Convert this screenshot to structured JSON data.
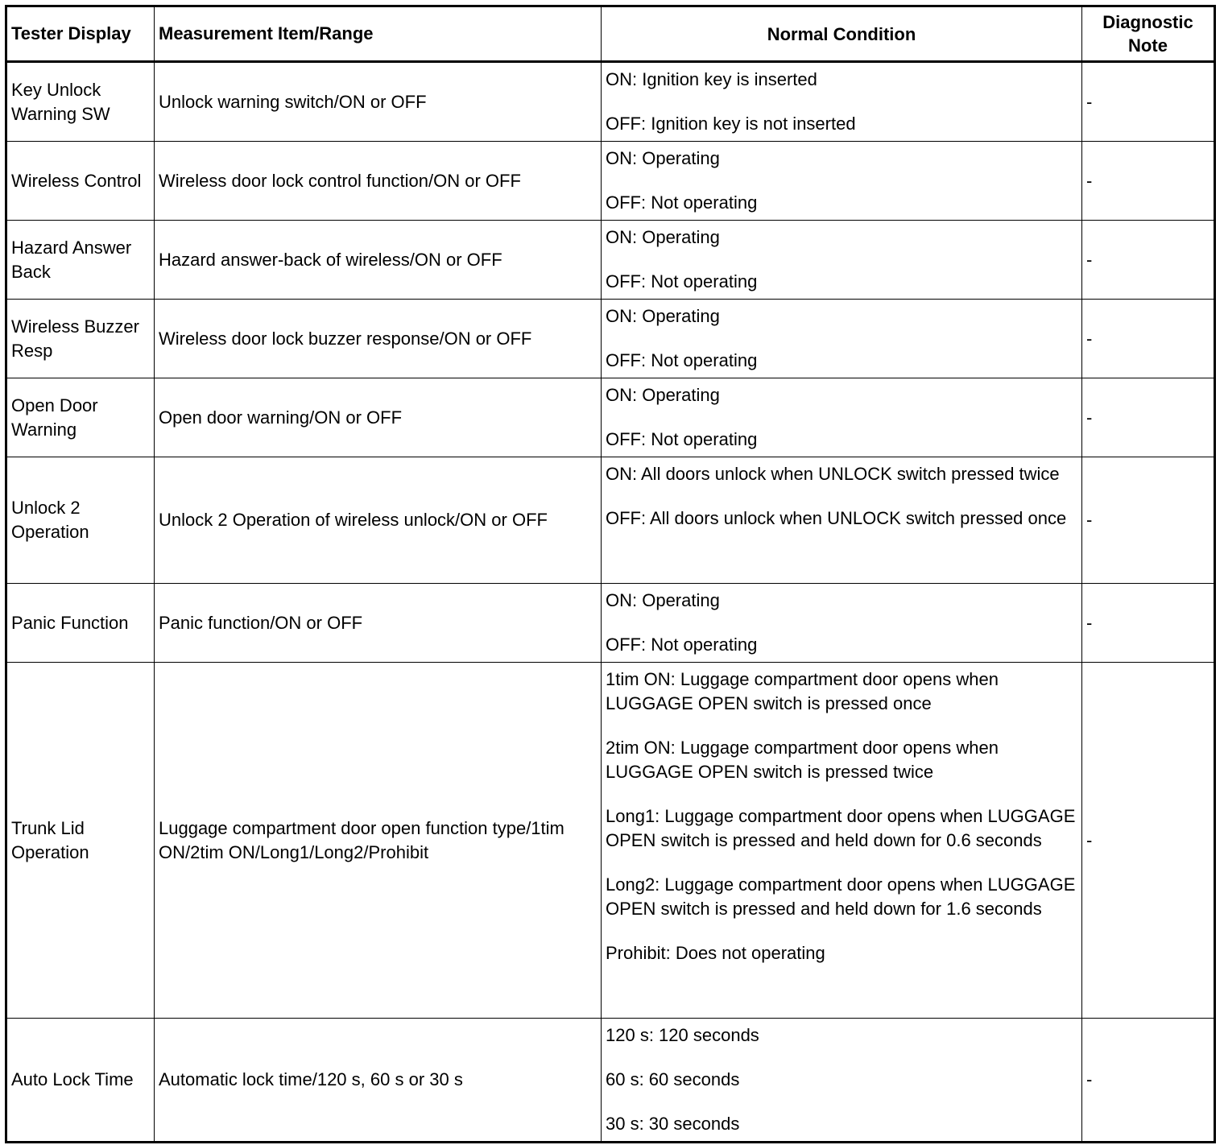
{
  "headers": [
    "Tester Display",
    "Measurement Item/Range",
    "Normal Condition",
    "Diagnostic Note"
  ],
  "rows": [
    {
      "display": "Key Unlock Warning SW",
      "item": "Unlock warning switch/ON or OFF",
      "conditions": [
        "ON: Ignition key is inserted",
        "OFF: Ignition key is not inserted"
      ],
      "note": "-"
    },
    {
      "display": "Wireless Control",
      "item": "Wireless door lock control function/ON or OFF",
      "conditions": [
        "ON: Operating",
        "OFF: Not operating"
      ],
      "note": "-"
    },
    {
      "display": "Hazard Answer Back",
      "item": "Hazard answer-back of wireless/ON or OFF",
      "conditions": [
        "ON: Operating",
        "OFF: Not operating"
      ],
      "note": "-"
    },
    {
      "display": "Wireless Buzzer Resp",
      "item": "Wireless door lock buzzer response/ON or OFF",
      "conditions": [
        "ON: Operating",
        "OFF: Not operating"
      ],
      "note": "-"
    },
    {
      "display": "Open Door Warning",
      "item": "Open door warning/ON or OFF",
      "conditions": [
        "ON: Operating",
        "OFF: Not operating"
      ],
      "note": "-"
    },
    {
      "display": "Unlock 2 Operation",
      "item": "Unlock 2 Operation of wireless unlock/ON or OFF",
      "conditions": [
        "ON: All doors unlock when UNLOCK switch pressed twice",
        "OFF: All doors unlock when UNLOCK switch pressed once"
      ],
      "note": "-"
    },
    {
      "display": "Panic Function",
      "item": "Panic function/ON or OFF",
      "conditions": [
        "ON: Operating",
        "OFF: Not operating"
      ],
      "note": "-"
    },
    {
      "display": "Trunk Lid Operation",
      "item": "Luggage compartment door open function type/1tim ON/2tim ON/Long1/Long2/Prohibit",
      "conditions": [
        "1tim ON: Luggage compartment door opens when LUGGAGE OPEN switch is pressed once",
        "2tim ON: Luggage compartment door opens when LUGGAGE OPEN switch is pressed twice",
        "Long1: Luggage compartment door opens when LUGGAGE OPEN switch is pressed and held down for 0.6 seconds",
        "Long2: Luggage compartment door opens when LUGGAGE OPEN switch is pressed and held down for 1.6 seconds",
        "Prohibit: Does not operating"
      ],
      "note": "-"
    },
    {
      "display": "Auto Lock Time",
      "item": "Automatic lock time/120 s, 60 s or 30 s",
      "conditions": [
        "120 s: 120 seconds",
        "60 s: 60 seconds",
        "30 s: 30 seconds"
      ],
      "note": "-"
    }
  ]
}
